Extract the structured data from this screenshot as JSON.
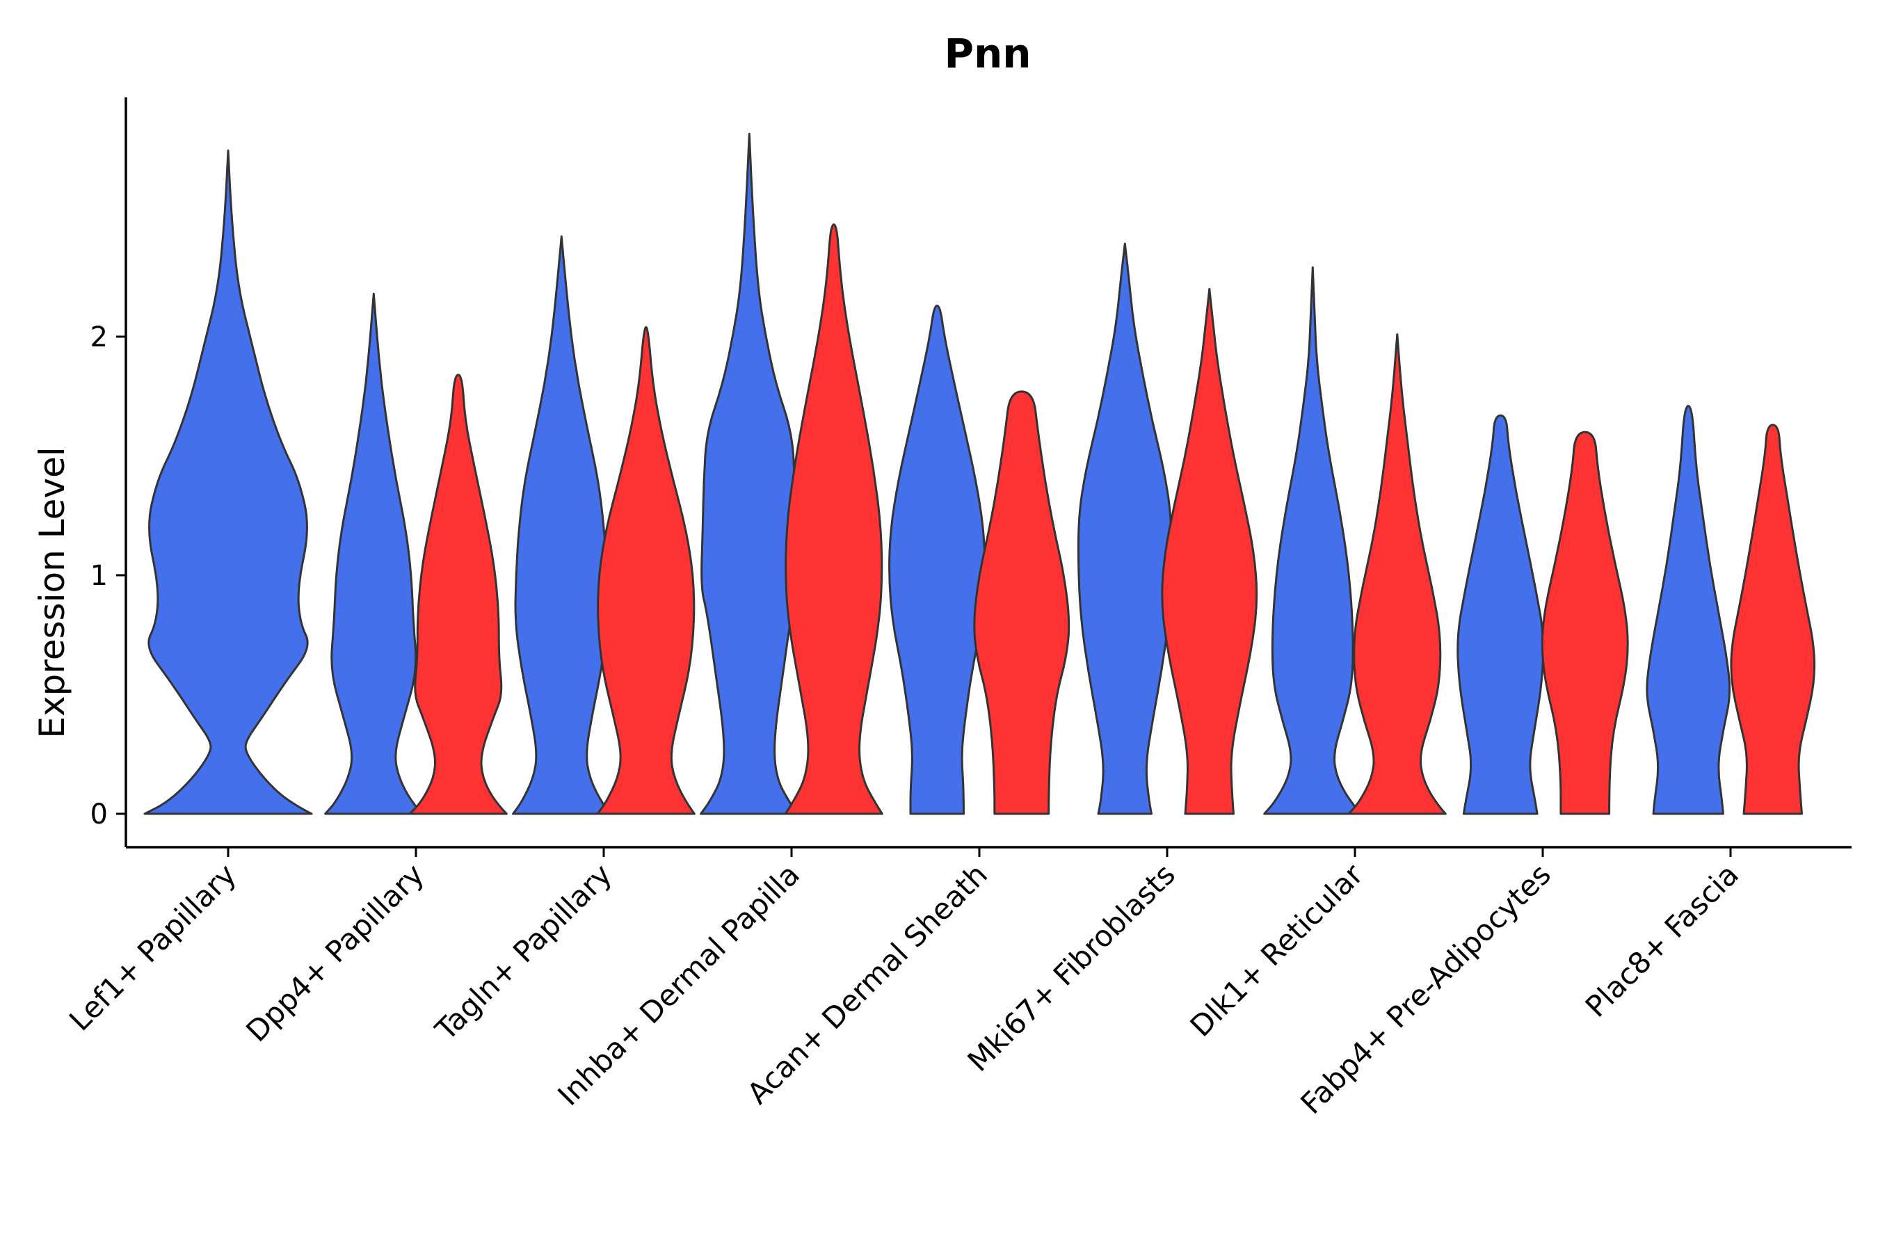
{
  "chart_data": {
    "type": "violin",
    "title": "Pnn",
    "xlabel": "",
    "ylabel": "Expression Level",
    "ylim": [
      -0.14,
      3.0
    ],
    "yticks": [
      0,
      1,
      2
    ],
    "ytick_labels": [
      "0",
      "1",
      "2"
    ],
    "grid": false,
    "legend": "none",
    "series_colors": [
      "#4470EC",
      "#FF3333"
    ],
    "categories": [
      "Lef1+ Papillary",
      "Dpp4+ Papillary",
      "Tagln+ Papillary",
      "Inhba+ Dermal Papilla",
      "Acan+ Dermal Sheath",
      "Mki67+ Fibroblasts",
      "Dlk1+ Reticular",
      "Fabp4+ Pre-Adipocytes",
      "Plac8+ Fascia"
    ],
    "violins": [
      {
        "category_index": 0,
        "group": 0,
        "max": 2.78,
        "profile": [
          [
            0,
            1.0
          ],
          [
            0.05,
            0.72
          ],
          [
            0.15,
            0.42
          ],
          [
            0.25,
            0.22
          ],
          [
            0.3,
            0.2
          ],
          [
            0.4,
            0.4
          ],
          [
            0.55,
            0.68
          ],
          [
            0.7,
            1.0
          ],
          [
            0.8,
            0.86
          ],
          [
            0.95,
            0.83
          ],
          [
            1.2,
            0.98
          ],
          [
            1.4,
            0.85
          ],
          [
            1.55,
            0.64
          ],
          [
            1.75,
            0.44
          ],
          [
            1.95,
            0.3
          ],
          [
            2.2,
            0.12
          ],
          [
            2.5,
            0.04
          ],
          [
            2.78,
            0.0
          ]
        ]
      },
      {
        "category_index": 1,
        "group": 0,
        "max": 2.18,
        "profile": [
          [
            0,
            1.0
          ],
          [
            0.05,
            0.78
          ],
          [
            0.15,
            0.52
          ],
          [
            0.25,
            0.42
          ],
          [
            0.4,
            0.62
          ],
          [
            0.6,
            0.9
          ],
          [
            0.8,
            0.82
          ],
          [
            1.0,
            0.78
          ],
          [
            1.2,
            0.66
          ],
          [
            1.4,
            0.46
          ],
          [
            1.6,
            0.3
          ],
          [
            1.8,
            0.16
          ],
          [
            2.0,
            0.07
          ],
          [
            2.18,
            0.0
          ]
        ]
      },
      {
        "category_index": 1,
        "group": 1,
        "max": 1.84,
        "profile": [
          [
            0,
            1.0
          ],
          [
            0.05,
            0.76
          ],
          [
            0.15,
            0.5
          ],
          [
            0.25,
            0.46
          ],
          [
            0.4,
            0.72
          ],
          [
            0.5,
            0.92
          ],
          [
            0.65,
            0.84
          ],
          [
            0.85,
            0.84
          ],
          [
            1.05,
            0.74
          ],
          [
            1.25,
            0.55
          ],
          [
            1.45,
            0.34
          ],
          [
            1.65,
            0.14
          ],
          [
            1.84,
            0.08
          ]
        ]
      },
      {
        "category_index": 2,
        "group": 0,
        "max": 2.42,
        "profile": [
          [
            0,
            1.0
          ],
          [
            0.05,
            0.82
          ],
          [
            0.15,
            0.58
          ],
          [
            0.25,
            0.5
          ],
          [
            0.4,
            0.62
          ],
          [
            0.6,
            0.82
          ],
          [
            0.8,
            0.96
          ],
          [
            1.0,
            0.94
          ],
          [
            1.2,
            0.88
          ],
          [
            1.4,
            0.76
          ],
          [
            1.6,
            0.55
          ],
          [
            1.8,
            0.35
          ],
          [
            2.0,
            0.2
          ],
          [
            2.2,
            0.1
          ],
          [
            2.42,
            0.0
          ]
        ]
      },
      {
        "category_index": 2,
        "group": 1,
        "max": 2.04,
        "profile": [
          [
            0,
            1.0
          ],
          [
            0.05,
            0.82
          ],
          [
            0.15,
            0.58
          ],
          [
            0.25,
            0.5
          ],
          [
            0.4,
            0.66
          ],
          [
            0.6,
            0.9
          ],
          [
            0.8,
            1.0
          ],
          [
            1.0,
            0.98
          ],
          [
            1.2,
            0.82
          ],
          [
            1.4,
            0.56
          ],
          [
            1.6,
            0.32
          ],
          [
            1.8,
            0.14
          ],
          [
            2.04,
            0.04
          ]
        ]
      },
      {
        "category_index": 3,
        "group": 0,
        "max": 2.85,
        "profile": [
          [
            0,
            1.0
          ],
          [
            0.05,
            0.82
          ],
          [
            0.15,
            0.56
          ],
          [
            0.3,
            0.5
          ],
          [
            0.6,
            0.7
          ],
          [
            0.85,
            0.88
          ],
          [
            0.95,
            1.0
          ],
          [
            1.2,
            0.96
          ],
          [
            1.4,
            0.94
          ],
          [
            1.6,
            0.88
          ],
          [
            1.8,
            0.55
          ],
          [
            2.0,
            0.34
          ],
          [
            2.2,
            0.18
          ],
          [
            2.5,
            0.08
          ],
          [
            2.85,
            0.0
          ]
        ]
      },
      {
        "category_index": 3,
        "group": 1,
        "max": 2.47,
        "profile": [
          [
            0,
            1.0
          ],
          [
            0.05,
            0.84
          ],
          [
            0.15,
            0.58
          ],
          [
            0.3,
            0.5
          ],
          [
            0.55,
            0.72
          ],
          [
            0.75,
            0.9
          ],
          [
            0.95,
            1.0
          ],
          [
            1.2,
            0.98
          ],
          [
            1.45,
            0.82
          ],
          [
            1.7,
            0.6
          ],
          [
            1.95,
            0.36
          ],
          [
            2.15,
            0.2
          ],
          [
            2.3,
            0.12
          ],
          [
            2.47,
            0.06
          ]
        ]
      },
      {
        "category_index": 4,
        "group": 0,
        "max": 2.13,
        "profile": [
          [
            0,
            0.55
          ],
          [
            0.1,
            0.55
          ],
          [
            0.25,
            0.5
          ],
          [
            0.4,
            0.58
          ],
          [
            0.6,
            0.72
          ],
          [
            0.8,
            0.92
          ],
          [
            1.0,
            1.0
          ],
          [
            1.2,
            0.96
          ],
          [
            1.4,
            0.8
          ],
          [
            1.6,
            0.58
          ],
          [
            1.8,
            0.36
          ],
          [
            2.0,
            0.15
          ],
          [
            2.13,
            0.06
          ]
        ]
      },
      {
        "category_index": 4,
        "group": 1,
        "max": 1.77,
        "profile": [
          [
            0,
            0.56
          ],
          [
            0.1,
            0.56
          ],
          [
            0.3,
            0.6
          ],
          [
            0.5,
            0.72
          ],
          [
            0.65,
            0.92
          ],
          [
            0.8,
            1.0
          ],
          [
            1.0,
            0.88
          ],
          [
            1.2,
            0.66
          ],
          [
            1.4,
            0.48
          ],
          [
            1.6,
            0.34
          ],
          [
            1.77,
            0.24
          ]
        ]
      },
      {
        "category_index": 5,
        "group": 0,
        "max": 2.39,
        "profile": [
          [
            0,
            0.55
          ],
          [
            0.05,
            0.5
          ],
          [
            0.2,
            0.42
          ],
          [
            0.4,
            0.58
          ],
          [
            0.6,
            0.76
          ],
          [
            0.8,
            0.9
          ],
          [
            1.0,
            0.96
          ],
          [
            1.25,
            0.96
          ],
          [
            1.45,
            0.8
          ],
          [
            1.65,
            0.56
          ],
          [
            1.85,
            0.36
          ],
          [
            2.05,
            0.18
          ],
          [
            2.25,
            0.08
          ],
          [
            2.39,
            0.0
          ]
        ]
      },
      {
        "category_index": 5,
        "group": 1,
        "max": 2.2,
        "profile": [
          [
            0,
            0.5
          ],
          [
            0.1,
            0.46
          ],
          [
            0.25,
            0.44
          ],
          [
            0.45,
            0.62
          ],
          [
            0.7,
            0.88
          ],
          [
            0.9,
            1.0
          ],
          [
            1.1,
            0.92
          ],
          [
            1.3,
            0.72
          ],
          [
            1.5,
            0.5
          ],
          [
            1.7,
            0.32
          ],
          [
            1.9,
            0.16
          ],
          [
            2.05,
            0.08
          ],
          [
            2.2,
            0.0
          ]
        ]
      },
      {
        "category_index": 6,
        "group": 0,
        "max": 2.29,
        "profile": [
          [
            0,
            1.0
          ],
          [
            0.05,
            0.78
          ],
          [
            0.15,
            0.5
          ],
          [
            0.25,
            0.42
          ],
          [
            0.4,
            0.64
          ],
          [
            0.55,
            0.82
          ],
          [
            0.75,
            0.84
          ],
          [
            1.0,
            0.76
          ],
          [
            1.25,
            0.58
          ],
          [
            1.5,
            0.34
          ],
          [
            1.7,
            0.2
          ],
          [
            1.9,
            0.08
          ],
          [
            2.1,
            0.04
          ],
          [
            2.29,
            0.0
          ]
        ]
      },
      {
        "category_index": 6,
        "group": 1,
        "max": 2.01,
        "profile": [
          [
            0,
            1.0
          ],
          [
            0.05,
            0.78
          ],
          [
            0.15,
            0.52
          ],
          [
            0.25,
            0.46
          ],
          [
            0.4,
            0.7
          ],
          [
            0.55,
            0.88
          ],
          [
            0.75,
            0.9
          ],
          [
            0.95,
            0.72
          ],
          [
            1.15,
            0.5
          ],
          [
            1.35,
            0.34
          ],
          [
            1.55,
            0.22
          ],
          [
            1.75,
            0.1
          ],
          [
            2.01,
            0.0
          ]
        ]
      },
      {
        "category_index": 7,
        "group": 0,
        "max": 1.67,
        "profile": [
          [
            0,
            0.76
          ],
          [
            0.05,
            0.72
          ],
          [
            0.2,
            0.58
          ],
          [
            0.35,
            0.7
          ],
          [
            0.55,
            0.86
          ],
          [
            0.75,
            0.9
          ],
          [
            0.95,
            0.72
          ],
          [
            1.15,
            0.52
          ],
          [
            1.35,
            0.32
          ],
          [
            1.55,
            0.16
          ],
          [
            1.67,
            0.12
          ]
        ]
      },
      {
        "category_index": 7,
        "group": 1,
        "max": 1.6,
        "profile": [
          [
            0,
            0.5
          ],
          [
            0.15,
            0.5
          ],
          [
            0.35,
            0.58
          ],
          [
            0.55,
            0.82
          ],
          [
            0.7,
            0.9
          ],
          [
            0.85,
            0.84
          ],
          [
            1.05,
            0.62
          ],
          [
            1.25,
            0.42
          ],
          [
            1.45,
            0.26
          ],
          [
            1.6,
            0.2
          ]
        ]
      },
      {
        "category_index": 8,
        "group": 0,
        "max": 1.71,
        "profile": [
          [
            0,
            0.72
          ],
          [
            0.05,
            0.7
          ],
          [
            0.2,
            0.6
          ],
          [
            0.35,
            0.72
          ],
          [
            0.5,
            0.88
          ],
          [
            0.65,
            0.8
          ],
          [
            0.85,
            0.62
          ],
          [
            1.05,
            0.44
          ],
          [
            1.25,
            0.3
          ],
          [
            1.45,
            0.16
          ],
          [
            1.71,
            0.08
          ]
        ]
      },
      {
        "category_index": 8,
        "group": 1,
        "max": 1.63,
        "profile": [
          [
            0,
            0.6
          ],
          [
            0.1,
            0.56
          ],
          [
            0.25,
            0.52
          ],
          [
            0.4,
            0.7
          ],
          [
            0.55,
            0.86
          ],
          [
            0.7,
            0.86
          ],
          [
            0.9,
            0.66
          ],
          [
            1.1,
            0.48
          ],
          [
            1.3,
            0.32
          ],
          [
            1.5,
            0.16
          ],
          [
            1.63,
            0.12
          ]
        ]
      }
    ]
  }
}
